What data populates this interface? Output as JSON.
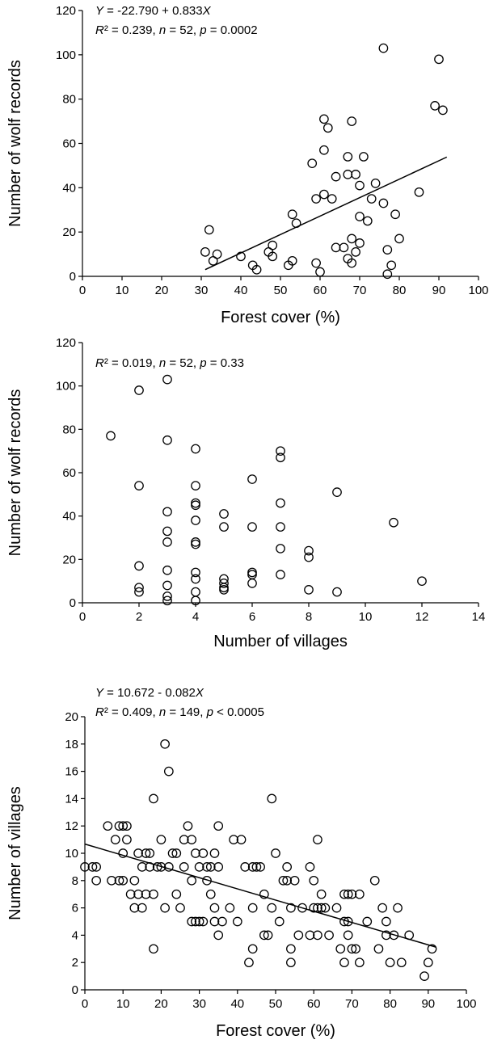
{
  "chart_data": [
    {
      "type": "scatter",
      "xlabel": "Forest cover (%)",
      "ylabel": "Number of wolf records",
      "xlim": [
        0,
        100
      ],
      "ylim": [
        0,
        120
      ],
      "xticks": [
        0,
        10,
        20,
        30,
        40,
        50,
        60,
        70,
        80,
        90,
        100
      ],
      "yticks": [
        0,
        20,
        40,
        60,
        80,
        100,
        120
      ],
      "annotations": [
        {
          "parts": [
            [
              "Y",
              true
            ],
            [
              " = -22.790 + 0.833",
              false
            ],
            [
              "X",
              true
            ]
          ]
        },
        {
          "parts": [
            [
              "R",
              true
            ],
            [
              "²",
              false
            ],
            [
              " = 0.239, ",
              false
            ],
            [
              "n",
              true
            ],
            [
              " = 52, ",
              false
            ],
            [
              "p",
              true
            ],
            [
              " = 0.0002",
              false
            ]
          ]
        }
      ],
      "regression": {
        "intercept": -22.79,
        "slope": 0.833,
        "x_range": [
          31,
          92
        ]
      },
      "points": [
        [
          31,
          11
        ],
        [
          32,
          21
        ],
        [
          33,
          7
        ],
        [
          34,
          10
        ],
        [
          40,
          9
        ],
        [
          43,
          5
        ],
        [
          44,
          3
        ],
        [
          47,
          11
        ],
        [
          48,
          14
        ],
        [
          48,
          9
        ],
        [
          52,
          5
        ],
        [
          53,
          7
        ],
        [
          53,
          28
        ],
        [
          54,
          24
        ],
        [
          58,
          51
        ],
        [
          59,
          35
        ],
        [
          59,
          6
        ],
        [
          60,
          2
        ],
        [
          61,
          57
        ],
        [
          61,
          37
        ],
        [
          61,
          71
        ],
        [
          62,
          67
        ],
        [
          63,
          35
        ],
        [
          64,
          45
        ],
        [
          64,
          13
        ],
        [
          66,
          13
        ],
        [
          67,
          54
        ],
        [
          67,
          8
        ],
        [
          67,
          46
        ],
        [
          68,
          6
        ],
        [
          68,
          70
        ],
        [
          68,
          17
        ],
        [
          69,
          46
        ],
        [
          69,
          11
        ],
        [
          70,
          41
        ],
        [
          70,
          27
        ],
        [
          70,
          15
        ],
        [
          71,
          54
        ],
        [
          72,
          25
        ],
        [
          73,
          35
        ],
        [
          74,
          42
        ],
        [
          76,
          103
        ],
        [
          76,
          33
        ],
        [
          77,
          12
        ],
        [
          77,
          1
        ],
        [
          78,
          5
        ],
        [
          79,
          28
        ],
        [
          80,
          17
        ],
        [
          85,
          38
        ],
        [
          89,
          77
        ],
        [
          90,
          98
        ],
        [
          91,
          75
        ]
      ]
    },
    {
      "type": "scatter",
      "xlabel": "Number of villages",
      "ylabel": "Number of wolf records",
      "xlim": [
        0,
        14
      ],
      "ylim": [
        0,
        120
      ],
      "xticks": [
        0,
        2,
        4,
        6,
        8,
        10,
        12,
        14
      ],
      "yticks": [
        0,
        20,
        40,
        60,
        80,
        100,
        120
      ],
      "annotations": [
        {
          "parts": [
            [
              "R",
              true
            ],
            [
              "²",
              false
            ],
            [
              " = 0.019, ",
              false
            ],
            [
              "n",
              true
            ],
            [
              " = 52, ",
              false
            ],
            [
              "p",
              true
            ],
            [
              " = 0.33",
              false
            ]
          ]
        }
      ],
      "regression": null,
      "points": [
        [
          1,
          77
        ],
        [
          2,
          98
        ],
        [
          2,
          54
        ],
        [
          2,
          17
        ],
        [
          2,
          7
        ],
        [
          2,
          5
        ],
        [
          3,
          103
        ],
        [
          3,
          75
        ],
        [
          3,
          42
        ],
        [
          3,
          33
        ],
        [
          3,
          28
        ],
        [
          3,
          15
        ],
        [
          3,
          8
        ],
        [
          3,
          3
        ],
        [
          3,
          1
        ],
        [
          4,
          71
        ],
        [
          4,
          54
        ],
        [
          4,
          46
        ],
        [
          4,
          45
        ],
        [
          4,
          38
        ],
        [
          4,
          28
        ],
        [
          4,
          27
        ],
        [
          4,
          14
        ],
        [
          4,
          11
        ],
        [
          4,
          5
        ],
        [
          4,
          1
        ],
        [
          5,
          41
        ],
        [
          5,
          35
        ],
        [
          5,
          11
        ],
        [
          5,
          9
        ],
        [
          5,
          7
        ],
        [
          5,
          6
        ],
        [
          6,
          57
        ],
        [
          6,
          35
        ],
        [
          6,
          14
        ],
        [
          6,
          13
        ],
        [
          6,
          9
        ],
        [
          7,
          70
        ],
        [
          7,
          67
        ],
        [
          7,
          46
        ],
        [
          7,
          35
        ],
        [
          7,
          25
        ],
        [
          7,
          13
        ],
        [
          8,
          24
        ],
        [
          8,
          21
        ],
        [
          8,
          6
        ],
        [
          9,
          51
        ],
        [
          9,
          5
        ],
        [
          11,
          37
        ],
        [
          12,
          10
        ]
      ]
    },
    {
      "type": "scatter",
      "xlabel": "Forest cover (%)",
      "ylabel": "Number of villages",
      "xlim": [
        0,
        100
      ],
      "ylim": [
        0,
        20
      ],
      "xticks": [
        0,
        10,
        20,
        30,
        40,
        50,
        60,
        70,
        80,
        90,
        100
      ],
      "yticks": [
        0,
        2,
        4,
        6,
        8,
        10,
        12,
        14,
        16,
        18,
        20
      ],
      "annotations": [
        {
          "parts": [
            [
              "Y",
              true
            ],
            [
              " = 10.672 - 0.082",
              false
            ],
            [
              "X",
              true
            ]
          ]
        },
        {
          "parts": [
            [
              "R",
              true
            ],
            [
              "²",
              false
            ],
            [
              " = 0.409, ",
              false
            ],
            [
              "n",
              true
            ],
            [
              " = 149, ",
              false
            ],
            [
              "p",
              true
            ],
            [
              " < 0.0005",
              false
            ]
          ]
        }
      ],
      "regression": {
        "intercept": 10.672,
        "slope": -0.082,
        "x_range": [
          0,
          92
        ]
      },
      "points": [
        [
          0,
          9
        ],
        [
          2,
          9
        ],
        [
          3,
          8
        ],
        [
          3,
          9
        ],
        [
          6,
          12
        ],
        [
          7,
          8
        ],
        [
          8,
          11
        ],
        [
          9,
          8
        ],
        [
          9,
          12
        ],
        [
          10,
          12
        ],
        [
          10,
          10
        ],
        [
          10,
          8
        ],
        [
          11,
          11
        ],
        [
          11,
          12
        ],
        [
          12,
          7
        ],
        [
          13,
          8
        ],
        [
          13,
          6
        ],
        [
          14,
          7
        ],
        [
          14,
          10
        ],
        [
          15,
          6
        ],
        [
          15,
          9
        ],
        [
          16,
          7
        ],
        [
          16,
          10
        ],
        [
          17,
          9
        ],
        [
          17,
          10
        ],
        [
          18,
          14
        ],
        [
          18,
          3
        ],
        [
          18,
          7
        ],
        [
          19,
          9
        ],
        [
          20,
          9
        ],
        [
          20,
          11
        ],
        [
          21,
          18
        ],
        [
          21,
          6
        ],
        [
          22,
          16
        ],
        [
          22,
          9
        ],
        [
          23,
          10
        ],
        [
          24,
          10
        ],
        [
          24,
          7
        ],
        [
          25,
          6
        ],
        [
          26,
          9
        ],
        [
          26,
          11
        ],
        [
          27,
          12
        ],
        [
          28,
          8
        ],
        [
          28,
          11
        ],
        [
          28,
          5
        ],
        [
          29,
          10
        ],
        [
          29,
          5
        ],
        [
          30,
          5
        ],
        [
          30,
          9
        ],
        [
          31,
          10
        ],
        [
          31,
          5
        ],
        [
          32,
          9
        ],
        [
          32,
          8
        ],
        [
          33,
          9
        ],
        [
          33,
          7
        ],
        [
          34,
          10
        ],
        [
          34,
          6
        ],
        [
          34,
          5
        ],
        [
          35,
          12
        ],
        [
          35,
          4
        ],
        [
          35,
          9
        ],
        [
          36,
          5
        ],
        [
          38,
          6
        ],
        [
          39,
          11
        ],
        [
          40,
          5
        ],
        [
          41,
          11
        ],
        [
          42,
          9
        ],
        [
          43,
          2
        ],
        [
          44,
          6
        ],
        [
          44,
          9
        ],
        [
          44,
          3
        ],
        [
          45,
          9
        ],
        [
          46,
          9
        ],
        [
          47,
          7
        ],
        [
          47,
          4
        ],
        [
          48,
          4
        ],
        [
          49,
          6
        ],
        [
          49,
          14
        ],
        [
          50,
          10
        ],
        [
          51,
          5
        ],
        [
          52,
          8
        ],
        [
          53,
          9
        ],
        [
          53,
          8
        ],
        [
          54,
          6
        ],
        [
          54,
          3
        ],
        [
          54,
          2
        ],
        [
          55,
          8
        ],
        [
          56,
          4
        ],
        [
          57,
          6
        ],
        [
          59,
          9
        ],
        [
          59,
          4
        ],
        [
          60,
          8
        ],
        [
          60,
          6
        ],
        [
          61,
          4
        ],
        [
          61,
          11
        ],
        [
          61,
          6
        ],
        [
          62,
          7
        ],
        [
          62,
          6
        ],
        [
          63,
          6
        ],
        [
          64,
          4
        ],
        [
          66,
          6
        ],
        [
          67,
          3
        ],
        [
          68,
          7
        ],
        [
          68,
          5
        ],
        [
          68,
          2
        ],
        [
          69,
          4
        ],
        [
          69,
          7
        ],
        [
          69,
          5
        ],
        [
          70,
          7
        ],
        [
          70,
          3
        ],
        [
          71,
          3
        ],
        [
          72,
          2
        ],
        [
          72,
          7
        ],
        [
          74,
          5
        ],
        [
          76,
          8
        ],
        [
          77,
          3
        ],
        [
          78,
          6
        ],
        [
          79,
          4
        ],
        [
          79,
          5
        ],
        [
          80,
          2
        ],
        [
          81,
          4
        ],
        [
          82,
          6
        ],
        [
          83,
          2
        ],
        [
          85,
          4
        ],
        [
          89,
          1
        ],
        [
          90,
          2
        ],
        [
          91,
          3
        ]
      ]
    }
  ]
}
